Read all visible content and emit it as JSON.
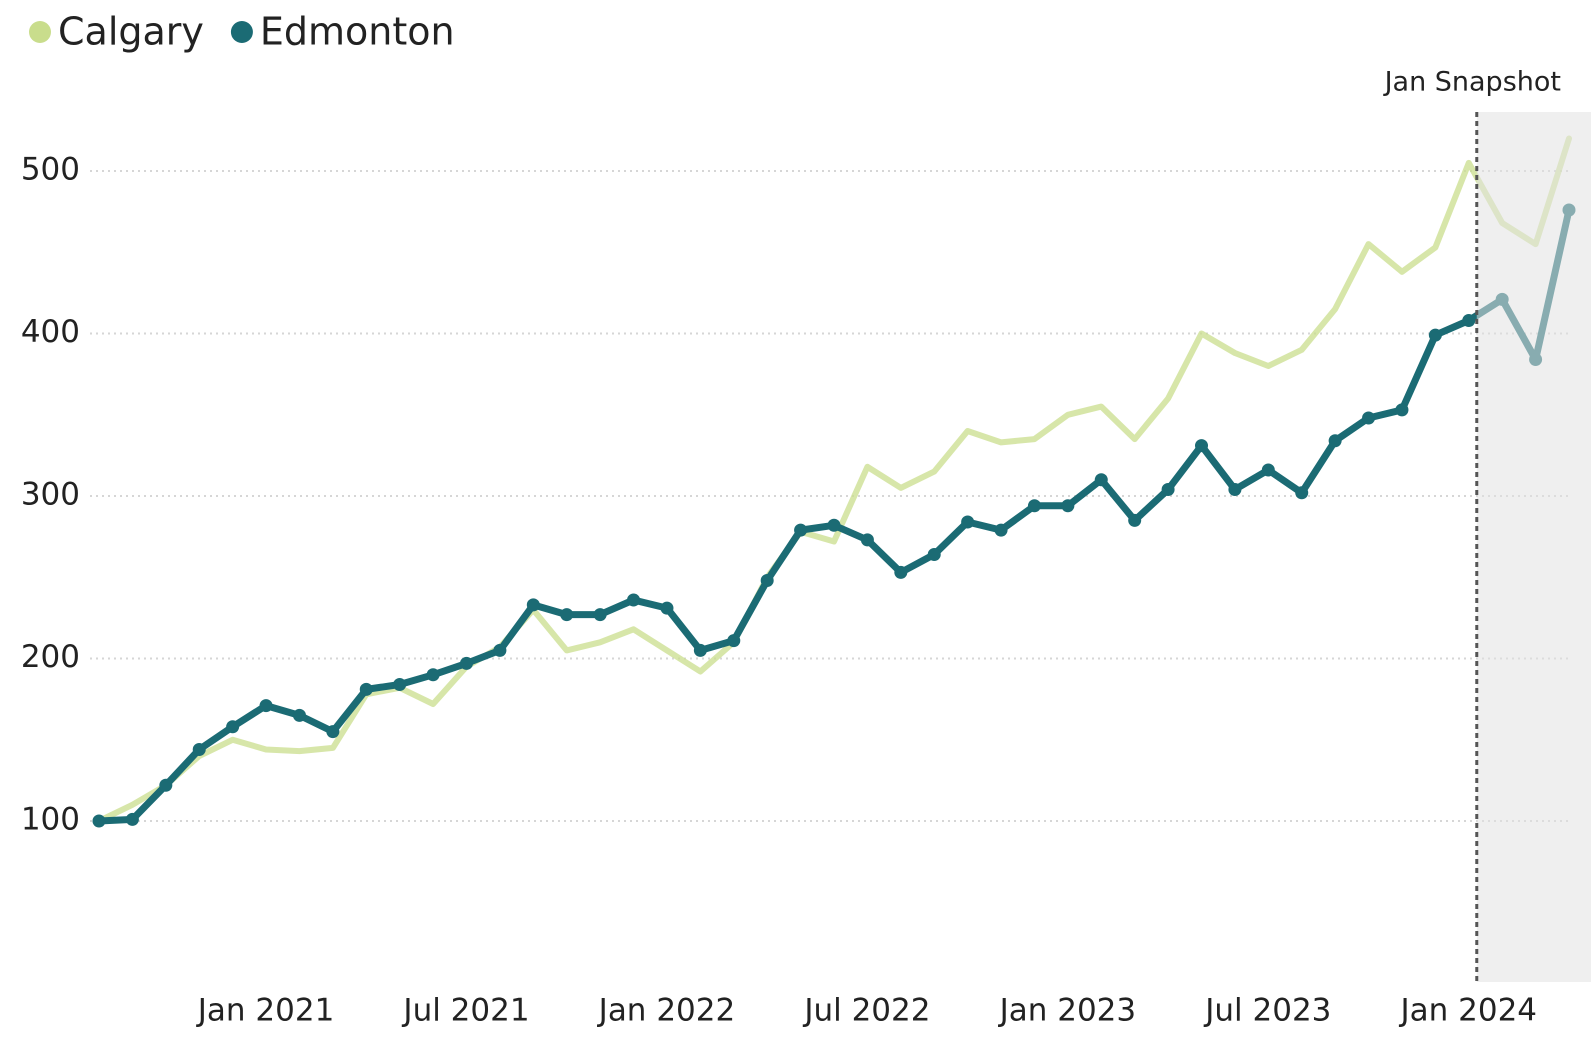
{
  "chart_data": {
    "type": "line",
    "x": [
      "2020-08",
      "2020-09",
      "2020-10",
      "2020-11",
      "2020-12",
      "2021-01",
      "2021-02",
      "2021-03",
      "2021-04",
      "2021-05",
      "2021-06",
      "2021-07",
      "2021-08",
      "2021-09",
      "2021-10",
      "2021-11",
      "2021-12",
      "2022-01",
      "2022-02",
      "2022-03",
      "2022-04",
      "2022-05",
      "2022-06",
      "2022-07",
      "2022-08",
      "2022-09",
      "2022-10",
      "2022-11",
      "2022-12",
      "2023-01",
      "2023-02",
      "2023-03",
      "2023-04",
      "2023-05",
      "2023-06",
      "2023-07",
      "2023-08",
      "2023-09",
      "2023-10",
      "2023-11",
      "2023-12",
      "2024-01",
      "2024-02",
      "2024-03",
      "2024-04"
    ],
    "series": [
      {
        "name": "Calgary",
        "color": "#c9dd8c",
        "values": [
          100,
          110,
          122,
          140,
          150,
          144,
          143,
          145,
          178,
          182,
          172,
          195,
          207,
          230,
          205,
          210,
          218,
          205,
          192,
          210,
          250,
          278,
          272,
          318,
          305,
          315,
          340,
          333,
          335,
          350,
          355,
          335,
          360,
          400,
          388,
          380,
          390,
          415,
          455,
          438,
          453,
          505,
          468,
          455,
          520
        ]
      },
      {
        "name": "Edmonton",
        "color": "#1b6b74",
        "values": [
          100,
          101,
          122,
          144,
          158,
          171,
          165,
          155,
          181,
          184,
          190,
          197,
          205,
          233,
          227,
          227,
          236,
          231,
          205,
          211,
          248,
          279,
          282,
          273,
          253,
          264,
          284,
          279,
          294,
          294,
          310,
          285,
          304,
          331,
          304,
          316,
          302,
          334,
          348,
          353,
          399,
          408,
          421,
          384,
          476
        ]
      }
    ],
    "xlim": [
      "2020-08",
      "2024-04"
    ],
    "xticks": [
      {
        "value": "2021-01",
        "label": "Jan 2021"
      },
      {
        "value": "2021-07",
        "label": "Jul 2021"
      },
      {
        "value": "2022-01",
        "label": "Jan 2022"
      },
      {
        "value": "2022-07",
        "label": "Jul 2022"
      },
      {
        "value": "2023-01",
        "label": "Jan 2023"
      },
      {
        "value": "2023-07",
        "label": "Jul 2023"
      },
      {
        "value": "2024-01",
        "label": "Jan 2024"
      }
    ],
    "ylim": [
      0,
      540
    ],
    "yticks": [
      100,
      200,
      300,
      400,
      500
    ],
    "grid": true,
    "legend": "top-left",
    "snapshot": {
      "x": "2024-01",
      "label": "Jan Snapshot"
    }
  }
}
